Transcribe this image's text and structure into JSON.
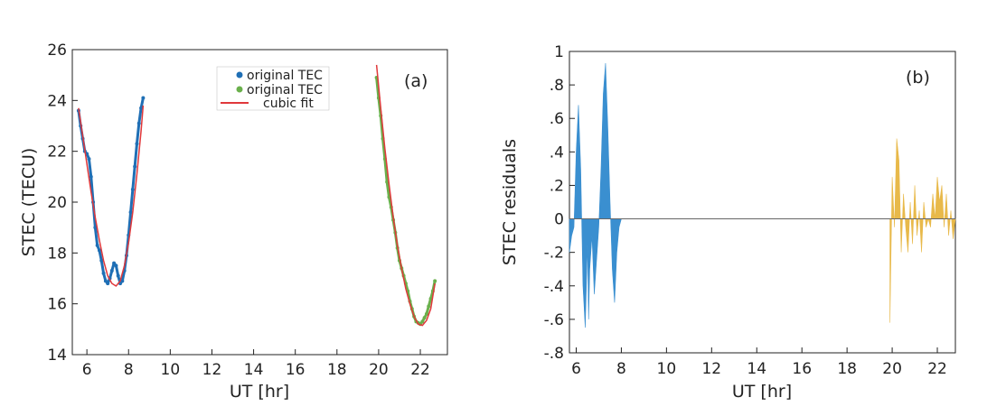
{
  "chart_data": [
    {
      "type": "line",
      "panel_label": "(a)",
      "xlabel": "UT [hr]",
      "ylabel": "STEC (TECU)",
      "xlim": [
        5.3,
        23.3
      ],
      "ylim": [
        14,
        26
      ],
      "xticks": [
        6,
        8,
        10,
        12,
        14,
        16,
        18,
        20,
        22
      ],
      "yticks": [
        14,
        16,
        18,
        20,
        22,
        24,
        26
      ],
      "grid": false,
      "legend_position": "top-center",
      "series": [
        {
          "name": "original TEC",
          "color": "#1f6fb5",
          "style": "dots",
          "x": [
            5.6,
            5.7,
            5.8,
            5.9,
            6.0,
            6.1,
            6.2,
            6.3,
            6.4,
            6.5,
            6.6,
            6.7,
            6.8,
            6.9,
            7.0,
            7.1,
            7.2,
            7.3,
            7.4,
            7.5,
            7.6,
            7.7,
            7.8,
            7.9,
            8.0,
            8.1,
            8.2,
            8.3,
            8.4,
            8.5,
            8.6,
            8.7
          ],
          "y": [
            23.6,
            23.0,
            22.5,
            22.0,
            21.9,
            21.7,
            21.0,
            20.0,
            19.0,
            18.3,
            18.1,
            17.7,
            17.2,
            16.9,
            16.8,
            17.0,
            17.3,
            17.6,
            17.5,
            17.1,
            16.8,
            16.9,
            17.3,
            17.9,
            18.7,
            19.6,
            20.5,
            21.4,
            22.3,
            23.1,
            23.7,
            24.1
          ]
        },
        {
          "name": "original TEC",
          "color": "#6ab04c",
          "style": "dots",
          "x": [
            19.9,
            20.0,
            20.1,
            20.2,
            20.3,
            20.4,
            20.5,
            20.6,
            20.7,
            20.8,
            20.9,
            21.0,
            21.1,
            21.2,
            21.3,
            21.4,
            21.5,
            21.6,
            21.7,
            21.8,
            21.9,
            22.0,
            22.1,
            22.2,
            22.3,
            22.4,
            22.5,
            22.6,
            22.7
          ],
          "y": [
            24.9,
            24.1,
            23.4,
            22.5,
            21.7,
            20.8,
            20.2,
            19.8,
            19.3,
            18.8,
            18.2,
            17.7,
            17.4,
            17.1,
            16.8,
            16.5,
            16.1,
            15.8,
            15.5,
            15.3,
            15.25,
            15.2,
            15.3,
            15.45,
            15.6,
            15.9,
            16.2,
            16.5,
            16.9
          ]
        },
        {
          "name": "cubic fit",
          "color": "#e0383b",
          "style": "line",
          "segments": [
            {
              "x": [
                5.6,
                5.8,
                6.0,
                6.2,
                6.4,
                6.6,
                6.8,
                7.0,
                7.2,
                7.4,
                7.6,
                7.8,
                8.0,
                8.2,
                8.4,
                8.6,
                8.7
              ],
              "y": [
                23.7,
                22.6,
                21.5,
                20.4,
                19.4,
                18.5,
                17.7,
                17.1,
                16.8,
                16.7,
                16.9,
                17.5,
                18.4,
                19.6,
                21.1,
                22.8,
                23.8
              ]
            },
            {
              "x": [
                19.9,
                20.1,
                20.3,
                20.5,
                20.7,
                20.9,
                21.1,
                21.3,
                21.5,
                21.7,
                21.9,
                22.1,
                22.3,
                22.5,
                22.7
              ],
              "y": [
                25.4,
                23.7,
                22.1,
                20.7,
                19.4,
                18.3,
                17.4,
                16.6,
                16.0,
                15.5,
                15.2,
                15.15,
                15.35,
                15.8,
                16.8
              ]
            }
          ]
        }
      ]
    },
    {
      "type": "area",
      "panel_label": "(b)",
      "xlabel": "UT [hr]",
      "ylabel": "STEC residuals",
      "xlim": [
        5.7,
        22.8
      ],
      "ylim": [
        -0.8,
        1.0
      ],
      "xticks": [
        6,
        8,
        10,
        12,
        14,
        16,
        18,
        20,
        22
      ],
      "yticks": [
        -0.8,
        -0.6,
        -0.4,
        -0.2,
        0,
        0.2,
        0.4,
        0.6,
        0.8,
        1
      ],
      "grid": false,
      "series": [
        {
          "color": "#3a8fd0",
          "x": [
            5.7,
            5.8,
            5.9,
            6.0,
            6.1,
            6.2,
            6.3,
            6.4,
            6.5,
            6.55,
            6.6,
            6.7,
            6.8,
            6.9,
            7.0,
            7.1,
            7.2,
            7.3,
            7.4,
            7.5,
            7.6,
            7.7,
            7.8,
            7.9,
            8.0,
            8.1,
            8.2,
            8.3,
            8.4,
            8.5
          ],
          "y": [
            -0.2,
            -0.1,
            -0.05,
            0.4,
            0.68,
            0.3,
            -0.4,
            -0.65,
            -0.15,
            -0.6,
            -0.3,
            -0.1,
            -0.45,
            -0.25,
            -0.05,
            0.3,
            0.75,
            0.93,
            0.55,
            0.1,
            -0.3,
            -0.5,
            -0.2,
            -0.05,
            0.0,
            0.0,
            0.0,
            0.0,
            0.0,
            0.0
          ]
        },
        {
          "color": "#e8b94a",
          "x": [
            19.9,
            20.0,
            20.1,
            20.2,
            20.3,
            20.4,
            20.5,
            20.6,
            20.7,
            20.8,
            20.9,
            21.0,
            21.1,
            21.2,
            21.3,
            21.4,
            21.5,
            21.6,
            21.7,
            21.8,
            21.9,
            22.0,
            22.1,
            22.2,
            22.3,
            22.4,
            22.5,
            22.6,
            22.7,
            22.8
          ],
          "y": [
            -0.62,
            0.25,
            -0.05,
            0.48,
            0.35,
            -0.2,
            0.15,
            -0.05,
            -0.2,
            0.1,
            -0.15,
            0.2,
            -0.1,
            0.05,
            -0.2,
            0.1,
            -0.05,
            0.0,
            -0.05,
            0.15,
            0.0,
            0.25,
            0.1,
            0.2,
            -0.05,
            0.15,
            -0.1,
            0.05,
            -0.12,
            0.0
          ]
        }
      ]
    }
  ]
}
